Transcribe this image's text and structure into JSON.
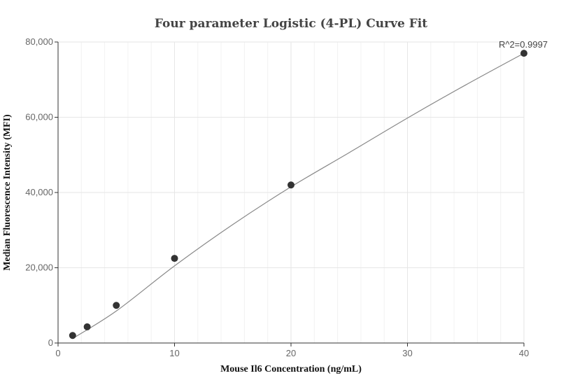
{
  "chart_data": {
    "type": "scatter",
    "title": "Four parameter Logistic (4-PL) Curve Fit",
    "xlabel": "Mouse Il6 Concentration (ng/mL)",
    "ylabel": "Median Fluorescence Intensity (MFI)",
    "xlim": [
      0,
      40
    ],
    "ylim": [
      0,
      80000
    ],
    "xticks": [
      0,
      10,
      20,
      30,
      40
    ],
    "yticks": [
      0,
      20000,
      40000,
      60000,
      80000
    ],
    "xtick_labels": [
      "0",
      "10",
      "20",
      "30",
      "40"
    ],
    "ytick_labels": [
      "0",
      "20,000",
      "40,000",
      "60,000",
      "80,000"
    ],
    "grid": true,
    "annotation": "R^2=0.9997",
    "colors": {
      "points": "#333333",
      "curve": "#888888",
      "grid": "#e6e6e6"
    },
    "series": [
      {
        "x": [
          1.25,
          2.5,
          5,
          10,
          20,
          40
        ],
        "y": [
          2000,
          4300,
          10000,
          22500,
          42000,
          77000
        ]
      }
    ],
    "fit_curve": {
      "x": [
        1.25,
        5,
        10,
        15,
        20,
        25,
        30,
        35,
        40
      ],
      "y": [
        1200,
        8500,
        20500,
        31500,
        41500,
        50600,
        59800,
        68600,
        77000
      ]
    }
  }
}
